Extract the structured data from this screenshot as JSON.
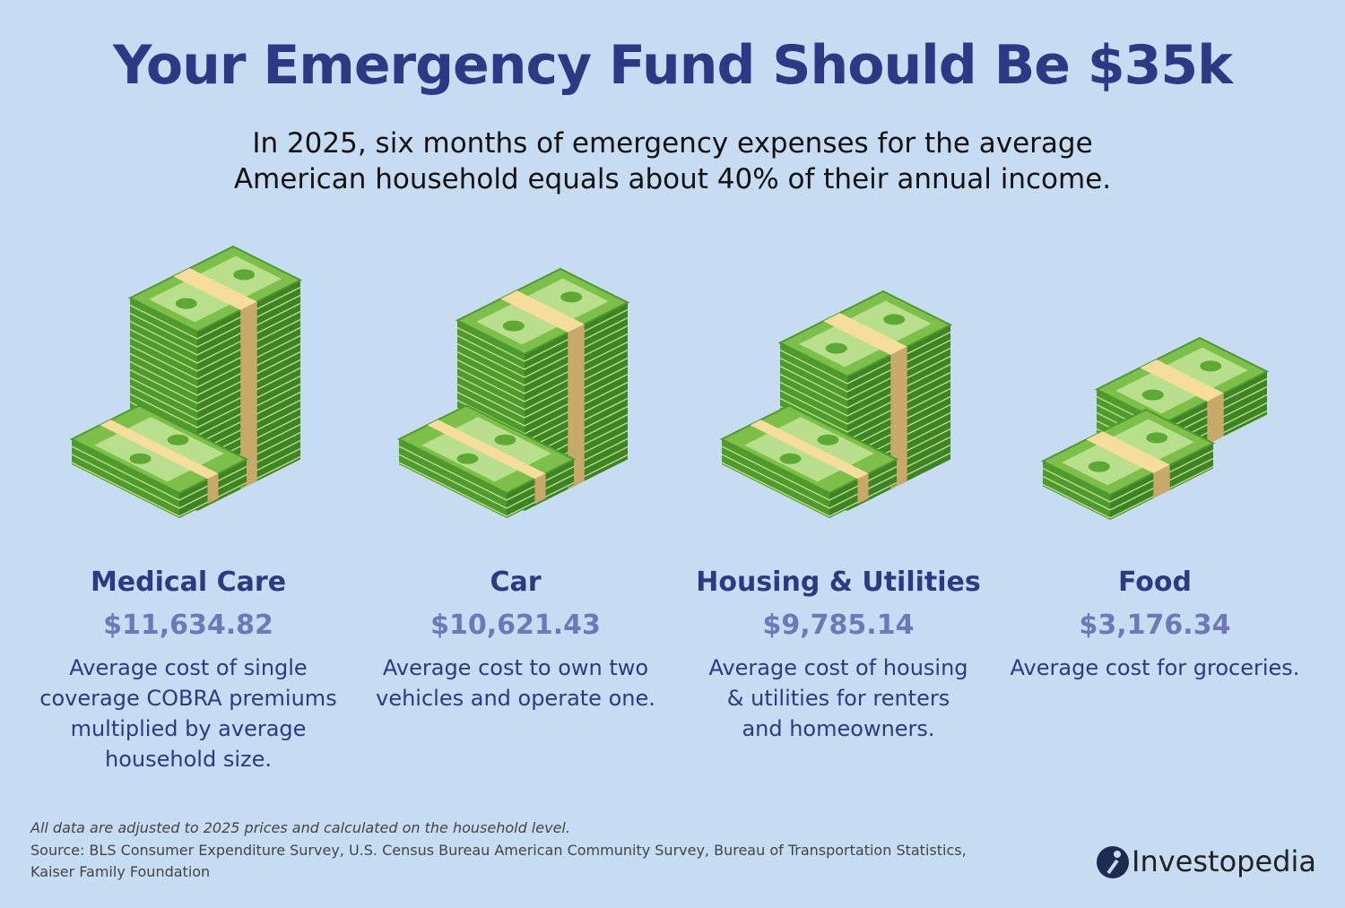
{
  "header": {
    "title": "Your Emergency Fund Should Be $35k",
    "subtitle": "In 2025, six months of emergency expenses for the average American household equals about 40% of their annual income."
  },
  "items": [
    {
      "label": "Medical Care",
      "amount": "$11,634.82",
      "description": "Average cost of single coverage COBRA premiums multiplied by average household size."
    },
    {
      "label": "Car",
      "amount": "$10,621.43",
      "description": "Average cost to own two vehicles and operate one."
    },
    {
      "label": "Housing & Utilities",
      "amount": "$9,785.14",
      "description": "Average cost of housing & utilities for renters and homeowners."
    },
    {
      "label": "Food",
      "amount": "$3,176.34",
      "description": "Average cost for groceries."
    }
  ],
  "footer": {
    "note": "All data are adjusted to 2025 prices and calculated on the household level.",
    "source": "Source: BLS Consumer Expenditure Survey, U.S. Census Bureau American Community Survey, Bureau of Transportation Statistics, Kaiser Family Foundation",
    "brand": "Investopedia"
  }
}
